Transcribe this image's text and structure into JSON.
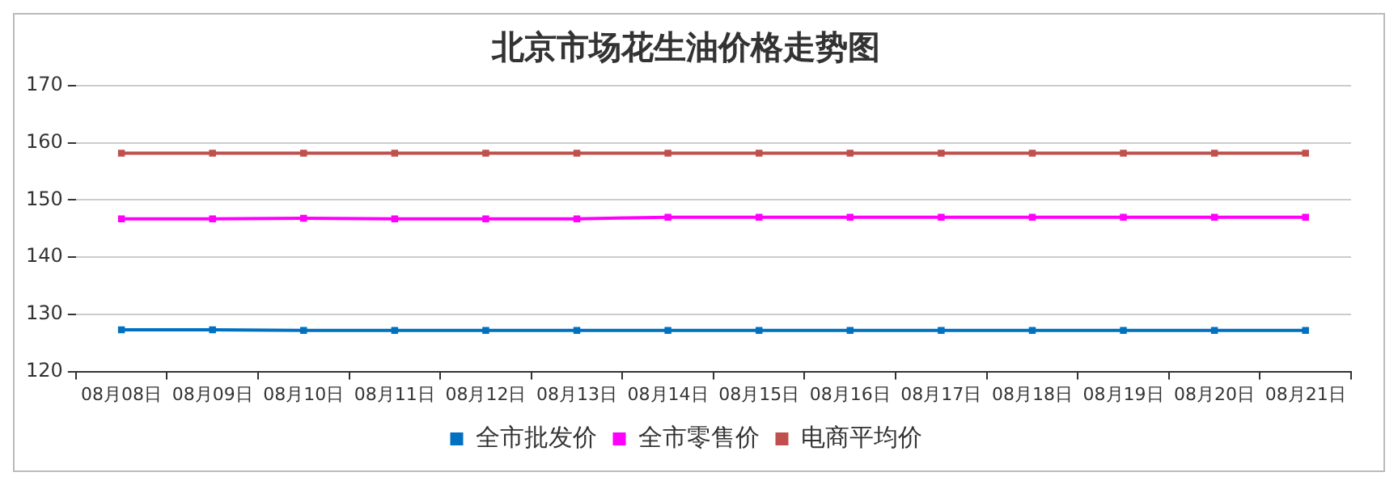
{
  "chart_data": {
    "type": "line",
    "title": "北京市场花生油价格走势图",
    "categories": [
      "08月08日",
      "08月09日",
      "08月10日",
      "08月11日",
      "08月12日",
      "08月13日",
      "08月14日",
      "08月15日",
      "08月16日",
      "08月17日",
      "08月18日",
      "08月19日",
      "08月20日",
      "08月21日"
    ],
    "series": [
      {
        "name": "全市批发价",
        "color": "#0070c0",
        "values": [
          127.3,
          127.3,
          127.2,
          127.2,
          127.2,
          127.2,
          127.2,
          127.2,
          127.2,
          127.2,
          127.2,
          127.2,
          127.2,
          127.2
        ]
      },
      {
        "name": "全市零售价",
        "color": "#ff00ff",
        "values": [
          146.7,
          146.7,
          146.8,
          146.7,
          146.7,
          146.7,
          147.0,
          147.0,
          147.0,
          147.0,
          147.0,
          147.0,
          147.0,
          147.0
        ]
      },
      {
        "name": "电商平均价",
        "color": "#c0504d",
        "values": [
          158.2,
          158.2,
          158.2,
          158.2,
          158.2,
          158.2,
          158.2,
          158.2,
          158.2,
          158.2,
          158.2,
          158.2,
          158.2,
          158.2
        ]
      }
    ],
    "ylim": [
      120,
      170
    ],
    "yticks": [
      120,
      130,
      140,
      150,
      160,
      170
    ],
    "grid": "y",
    "legend": "bottom",
    "marker": "square",
    "line_style": "solid"
  }
}
